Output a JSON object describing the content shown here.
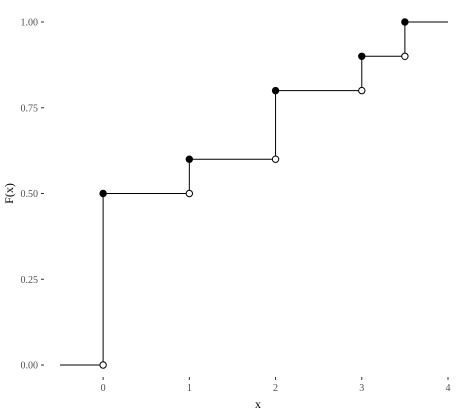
{
  "chart_data": {
    "type": "line",
    "subtype": "step-ecdf",
    "title": "",
    "xlabel": "x",
    "ylabel": "F(x)",
    "xlim": [
      -0.5,
      4.0
    ],
    "ylim": [
      0.0,
      1.0
    ],
    "x_ticks": [
      0,
      1,
      2,
      3,
      4
    ],
    "x_tick_labels": [
      "0",
      "1",
      "2",
      "3",
      "4"
    ],
    "y_ticks": [
      0.0,
      0.25,
      0.5,
      0.75,
      1.0
    ],
    "y_tick_labels": [
      "0.00",
      "0.25",
      "0.50",
      "0.75",
      "1.00"
    ],
    "grid": false,
    "jumps": [
      {
        "x": 0,
        "from": 0.0,
        "to": 0.5
      },
      {
        "x": 1,
        "from": 0.5,
        "to": 0.6
      },
      {
        "x": 2,
        "from": 0.6,
        "to": 0.8
      },
      {
        "x": 3,
        "from": 0.8,
        "to": 0.9
      },
      {
        "x": 3.5,
        "from": 0.9,
        "to": 1.0
      }
    ],
    "segments": [
      {
        "x0": -0.5,
        "x1": 0,
        "y": 0.0
      },
      {
        "x0": 0,
        "x1": 1,
        "y": 0.5
      },
      {
        "x0": 1,
        "x1": 2,
        "y": 0.6
      },
      {
        "x0": 2,
        "x1": 3,
        "y": 0.8
      },
      {
        "x0": 3,
        "x1": 3.5,
        "y": 0.9
      },
      {
        "x0": 3.5,
        "x1": 4.0,
        "y": 1.0
      }
    ],
    "colors": {
      "line": "#000000",
      "open_fill": "#ffffff",
      "closed_fill": "#000000",
      "text": "#4d4d4d"
    }
  }
}
